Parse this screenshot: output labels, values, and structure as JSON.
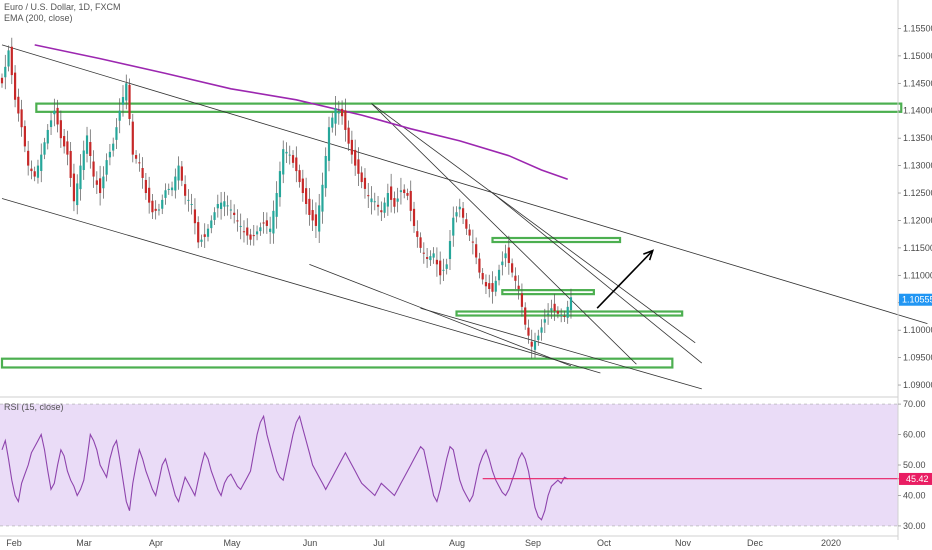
{
  "symbol_title": "Euro / U.S. Dollar, 1D, FXCM",
  "ema_label": "EMA (200, close)",
  "rsi_label": "RSI (15, close)",
  "colors": {
    "up": "#26a69a",
    "down": "#c62828",
    "ema": "#9c27b0",
    "rsi": "#8e44ad",
    "rsi_band": "#eadcf7",
    "zone": "#4caf50",
    "rsi_marker": "#e91e63",
    "price_tag": "#2196f3"
  },
  "chart_data": [
    {
      "type": "candlestick",
      "x_ticks": [
        "Feb",
        "Mar",
        "Apr",
        "May",
        "Jun",
        "Jul",
        "Aug",
        "Sep",
        "Oct",
        "Nov",
        "Dec",
        "2020"
      ],
      "y_ticks": [
        "1.15500",
        "1.15000",
        "1.14500",
        "1.14000",
        "1.13500",
        "1.13000",
        "1.12500",
        "1.12000",
        "1.11500",
        "1.11000",
        "1.10500",
        "1.10000",
        "1.09500",
        "1.09000"
      ],
      "ylim": [
        1.088,
        1.158
      ],
      "last_price": "1.10555",
      "series_anchors": [
        [
          0,
          1.145
        ],
        [
          2,
          1.151
        ],
        [
          4,
          1.142
        ],
        [
          6,
          1.137
        ],
        [
          8,
          1.13
        ],
        [
          10,
          1.128
        ],
        [
          12,
          1.132
        ],
        [
          14,
          1.1365
        ],
        [
          16,
          1.14
        ],
        [
          18,
          1.135
        ],
        [
          20,
          1.132
        ],
        [
          22,
          1.1235
        ],
        [
          24,
          1.13
        ],
        [
          26,
          1.1355
        ],
        [
          28,
          1.128
        ],
        [
          30,
          1.125
        ],
        [
          32,
          1.131
        ],
        [
          34,
          1.134
        ],
        [
          36,
          1.14
        ],
        [
          38,
          1.145
        ],
        [
          40,
          1.132
        ],
        [
          42,
          1.1305
        ],
        [
          44,
          1.125
        ],
        [
          46,
          1.1215
        ],
        [
          48,
          1.122
        ],
        [
          50,
          1.1255
        ],
        [
          52,
          1.126
        ],
        [
          54,
          1.13
        ],
        [
          56,
          1.1245
        ],
        [
          58,
          1.123
        ],
        [
          60,
          1.116
        ],
        [
          62,
          1.117
        ],
        [
          64,
          1.12
        ],
        [
          66,
          1.123
        ],
        [
          68,
          1.1235
        ],
        [
          70,
          1.122
        ],
        [
          72,
          1.12
        ],
        [
          74,
          1.118
        ],
        [
          76,
          1.1165
        ],
        [
          78,
          1.118
        ],
        [
          80,
          1.1195
        ],
        [
          82,
          1.1185
        ],
        [
          84,
          1.125
        ],
        [
          86,
          1.133
        ],
        [
          88,
          1.132
        ],
        [
          90,
          1.129
        ],
        [
          92,
          1.125
        ],
        [
          94,
          1.121
        ],
        [
          96,
          1.119
        ],
        [
          98,
          1.1265
        ],
        [
          100,
          1.137
        ],
        [
          102,
          1.1405
        ],
        [
          104,
          1.139
        ],
        [
          106,
          1.134
        ],
        [
          108,
          1.13
        ],
        [
          110,
          1.127
        ],
        [
          112,
          1.1245
        ],
        [
          114,
          1.1235
        ],
        [
          116,
          1.1215
        ],
        [
          118,
          1.125
        ],
        [
          120,
          1.1225
        ],
        [
          122,
          1.1255
        ],
        [
          124,
          1.1245
        ],
        [
          126,
          1.119
        ],
        [
          128,
          1.115
        ],
        [
          130,
          1.113
        ],
        [
          132,
          1.114
        ],
        [
          134,
          1.11
        ],
        [
          136,
          1.112
        ],
        [
          138,
          1.1205
        ],
        [
          140,
          1.1225
        ],
        [
          142,
          1.1185
        ],
        [
          144,
          1.116
        ],
        [
          146,
          1.1105
        ],
        [
          148,
          1.108
        ],
        [
          150,
          1.107
        ],
        [
          152,
          1.111
        ],
        [
          154,
          1.114
        ],
        [
          156,
          1.1105
        ],
        [
          158,
          1.1075
        ],
        [
          160,
          1.101
        ],
        [
          162,
          1.097
        ],
        [
          164,
          1.099
        ],
        [
          166,
          1.102
        ],
        [
          168,
          1.104
        ],
        [
          170,
          1.103
        ],
        [
          172,
          1.1025
        ],
        [
          174,
          1.106
        ]
      ],
      "ema_anchors": [
        [
          10,
          1.152
        ],
        [
          30,
          1.1495
        ],
        [
          50,
          1.1468
        ],
        [
          70,
          1.144
        ],
        [
          90,
          1.142
        ],
        [
          110,
          1.1392
        ],
        [
          125,
          1.1367
        ],
        [
          140,
          1.1345
        ],
        [
          155,
          1.1318
        ],
        [
          165,
          1.1292
        ],
        [
          173,
          1.1275
        ]
      ],
      "zones": [
        {
          "label": "resistance-1.140",
          "x0": 10.5,
          "x1": 275,
          "y_top": 1.1413,
          "y_bot": 1.1398
        },
        {
          "label": "zone-1.1165",
          "x0": 150,
          "x1": 189,
          "y_top": 1.1168,
          "y_bot": 1.1162
        },
        {
          "label": "zone-1.1070",
          "x0": 153,
          "x1": 181,
          "y_top": 1.1073,
          "y_bot": 1.1066
        },
        {
          "label": "level-1.1032",
          "x0": 139,
          "x1": 208,
          "y_top": 1.1034,
          "y_bot": 1.103
        },
        {
          "label": "support-1.094",
          "x0": 0,
          "x1": 205,
          "y_top": 1.0948,
          "y_bot": 1.0932
        }
      ],
      "trendlines": [
        {
          "label": "channel-top",
          "x0": 0,
          "y0": 1.152,
          "x1": 283,
          "y1": 1.1012
        },
        {
          "label": "channel-bottom",
          "x0": 0,
          "y0": 1.124,
          "x1": 183,
          "y1": 1.0922
        },
        {
          "label": "fan-1",
          "x0": 113,
          "y0": 1.1413,
          "x1": 212,
          "y1": 1.0977
        },
        {
          "label": "fan-2",
          "x0": 113,
          "y0": 1.1413,
          "x1": 194,
          "y1": 1.0938
        },
        {
          "label": "fan-3",
          "x0": 149,
          "y0": 1.1255,
          "x1": 214,
          "y1": 1.094
        },
        {
          "label": "wedge-bottom",
          "x0": 94,
          "y0": 1.112,
          "x1": 174,
          "y1": 1.0935
        },
        {
          "label": "wedge-low",
          "x0": 128,
          "y0": 1.104,
          "x1": 214,
          "y1": 1.0893
        }
      ],
      "arrow": {
        "x0": 182,
        "y0": 1.104,
        "x1": 199,
        "y1": 1.1145
      }
    },
    {
      "type": "line",
      "name": "RSI (15, close)",
      "y_ticks": [
        "70.00",
        "60.00",
        "50.00",
        "40.00",
        "30.00"
      ],
      "ylim": [
        28,
        72
      ],
      "band": [
        30,
        70
      ],
      "last_value": "45.42",
      "marker_level": 45.5,
      "marker_x": [
        147,
        283
      ],
      "values": [
        55,
        58,
        52,
        45,
        40,
        38,
        44,
        47,
        50,
        54,
        56,
        58,
        60,
        55,
        48,
        42,
        44,
        50,
        55,
        53,
        48,
        45,
        43,
        40,
        42,
        45,
        52,
        60,
        58,
        55,
        50,
        48,
        46,
        52,
        56,
        58,
        52,
        45,
        38,
        35,
        44,
        50,
        55,
        52,
        48,
        45,
        42,
        40,
        45,
        50,
        52,
        48,
        44,
        40,
        38,
        42,
        46,
        44,
        42,
        40,
        45,
        50,
        54,
        52,
        48,
        45,
        42,
        40,
        44,
        46,
        47,
        45,
        43,
        42,
        44,
        46,
        48,
        54,
        60,
        64,
        66,
        60,
        56,
        52,
        48,
        46,
        45,
        50,
        55,
        60,
        64,
        66,
        62,
        58,
        54,
        50,
        48,
        46,
        44,
        42,
        44,
        46,
        48,
        50,
        52,
        54,
        52,
        50,
        48,
        46,
        44,
        43,
        42,
        41,
        40,
        42,
        44,
        43,
        42,
        41,
        40,
        42,
        44,
        46,
        48,
        50,
        52,
        54,
        56,
        55,
        50,
        45,
        40,
        38,
        42,
        47,
        52,
        56,
        55,
        50,
        45,
        42,
        40,
        38,
        40,
        45,
        50,
        53,
        55,
        52,
        48,
        45,
        43,
        41,
        40,
        42,
        45,
        48,
        52,
        54,
        52,
        48,
        42,
        36,
        33,
        32,
        35,
        40,
        43,
        44,
        45,
        44,
        46,
        45.42
      ],
      "value_notes": "RSI sampled across the same bar index as price"
    }
  ]
}
